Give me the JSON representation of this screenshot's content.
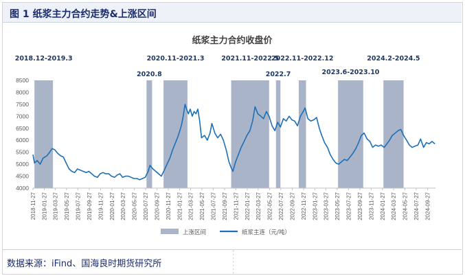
{
  "figure": {
    "title": "图 1  纸浆主力合约走势&上涨区间"
  },
  "source": {
    "text": "数据来源：iFind、国海良时期货研究所"
  },
  "chart_data": {
    "type": "line",
    "title": "纸浆主力合约收盘价",
    "xlabel": "",
    "ylabel": "",
    "ylim": [
      4000,
      8500
    ],
    "yticks": [
      4000,
      4500,
      5000,
      5500,
      6000,
      6500,
      7000,
      7500,
      8000,
      8500
    ],
    "x_tick_labels": [
      "2018-11-27",
      "2019-01-27",
      "2019-03-27",
      "2019-05-27",
      "2019-07-27",
      "2019-09-27",
      "2019-11-27",
      "2020-01-27",
      "2020-03-27",
      "2020-05-27",
      "2020-07-27",
      "2020-09-27",
      "2020-11-27",
      "2021-01-27",
      "2021-03-27",
      "2021-05-27",
      "2021-07-27",
      "2021-09-27",
      "2021-11-27",
      "2022-01-27",
      "2022-03-27",
      "2022-05-27",
      "2022-07-27",
      "2022-09-27",
      "2022-11-27",
      "2023-01-27",
      "2023-03-27",
      "2023-05-27",
      "2023-07-27",
      "2023-09-27",
      "2023-11-27",
      "2024-01-27",
      "2024-03-27",
      "2024-05-27",
      "2024-07-27",
      "2024-09-27"
    ],
    "grid": false,
    "legend": "bottom",
    "colors": {
      "line": "#1a6fb8",
      "shade": "#aab4c8"
    },
    "legend_entries": [
      "上涨区间",
      "纸浆主连（元/吨）"
    ],
    "shaded_periods": [
      {
        "label": "2018.12-2019.3",
        "start": "2018-12-05",
        "end": "2019-03-15"
      },
      {
        "label": "2020.8",
        "start": "2020-08-01",
        "end": "2020-08-31"
      },
      {
        "label": "2020.11-2021.3",
        "start": "2020-11-01",
        "end": "2021-03-10"
      },
      {
        "label": "2021.11-2022.5",
        "start": "2021-11-01",
        "end": "2022-05-25"
      },
      {
        "label": "2022.7",
        "start": "2022-07-01",
        "end": "2022-07-25"
      },
      {
        "label": "2022.11-2022.12",
        "start": "2022-11-01",
        "end": "2022-12-10"
      },
      {
        "label": "2023.6-2023.10",
        "start": "2023-06-01",
        "end": "2023-10-15"
      },
      {
        "label": "2024.2-2024.5",
        "start": "2024-02-01",
        "end": "2024-05-20"
      }
    ],
    "series": [
      {
        "name": "纸浆主连（元/吨）",
        "points": [
          [
            "2018-11-27",
            5400
          ],
          [
            "2018-12-05",
            5050
          ],
          [
            "2018-12-20",
            5150
          ],
          [
            "2019-01-05",
            5000
          ],
          [
            "2019-01-20",
            5250
          ],
          [
            "2019-02-10",
            5350
          ],
          [
            "2019-02-25",
            5500
          ],
          [
            "2019-03-10",
            5650
          ],
          [
            "2019-03-25",
            5600
          ],
          [
            "2019-04-10",
            5450
          ],
          [
            "2019-04-25",
            5350
          ],
          [
            "2019-05-10",
            5300
          ],
          [
            "2019-05-25",
            5050
          ],
          [
            "2019-06-10",
            4800
          ],
          [
            "2019-06-25",
            4700
          ],
          [
            "2019-07-10",
            4650
          ],
          [
            "2019-07-25",
            4800
          ],
          [
            "2019-08-10",
            4750
          ],
          [
            "2019-08-25",
            4700
          ],
          [
            "2019-09-10",
            4650
          ],
          [
            "2019-09-25",
            4700
          ],
          [
            "2019-10-10",
            4600
          ],
          [
            "2019-10-25",
            4500
          ],
          [
            "2019-11-10",
            4450
          ],
          [
            "2019-11-25",
            4600
          ],
          [
            "2019-12-10",
            4650
          ],
          [
            "2019-12-25",
            4600
          ],
          [
            "2020-01-10",
            4600
          ],
          [
            "2020-01-25",
            4500
          ],
          [
            "2020-02-10",
            4450
          ],
          [
            "2020-02-25",
            4550
          ],
          [
            "2020-03-10",
            4600
          ],
          [
            "2020-03-25",
            4450
          ],
          [
            "2020-04-10",
            4500
          ],
          [
            "2020-04-25",
            4500
          ],
          [
            "2020-05-10",
            4450
          ],
          [
            "2020-05-25",
            4400
          ],
          [
            "2020-06-10",
            4400
          ],
          [
            "2020-06-25",
            4350
          ],
          [
            "2020-07-10",
            4400
          ],
          [
            "2020-07-25",
            4450
          ],
          [
            "2020-08-10",
            4700
          ],
          [
            "2020-08-20",
            4950
          ],
          [
            "2020-09-05",
            4800
          ],
          [
            "2020-09-20",
            4700
          ],
          [
            "2020-10-05",
            4600
          ],
          [
            "2020-10-20",
            4500
          ],
          [
            "2020-11-05",
            4750
          ],
          [
            "2020-11-20",
            5000
          ],
          [
            "2020-12-05",
            5250
          ],
          [
            "2020-12-20",
            5600
          ],
          [
            "2021-01-05",
            5900
          ],
          [
            "2021-01-20",
            6200
          ],
          [
            "2021-02-05",
            6600
          ],
          [
            "2021-02-15",
            7000
          ],
          [
            "2021-02-25",
            7500
          ],
          [
            "2021-03-05",
            7300
          ],
          [
            "2021-03-15",
            7100
          ],
          [
            "2021-03-25",
            7300
          ],
          [
            "2021-04-05",
            7000
          ],
          [
            "2021-04-15",
            7200
          ],
          [
            "2021-04-25",
            7100
          ],
          [
            "2021-05-05",
            7300
          ],
          [
            "2021-05-15",
            6800
          ],
          [
            "2021-05-25",
            6100
          ],
          [
            "2021-06-10",
            6200
          ],
          [
            "2021-06-25",
            6000
          ],
          [
            "2021-07-10",
            6300
          ],
          [
            "2021-07-20",
            6700
          ],
          [
            "2021-08-05",
            6300
          ],
          [
            "2021-08-20",
            6100
          ],
          [
            "2021-09-05",
            6250
          ],
          [
            "2021-09-20",
            6000
          ],
          [
            "2021-10-05",
            5600
          ],
          [
            "2021-10-20",
            5100
          ],
          [
            "2021-11-01",
            4850
          ],
          [
            "2021-11-10",
            4700
          ],
          [
            "2021-11-25",
            5100
          ],
          [
            "2021-12-10",
            5400
          ],
          [
            "2021-12-25",
            5700
          ],
          [
            "2022-01-10",
            5950
          ],
          [
            "2022-01-25",
            6200
          ],
          [
            "2022-02-10",
            6400
          ],
          [
            "2022-02-25",
            6800
          ],
          [
            "2022-03-10",
            7400
          ],
          [
            "2022-03-25",
            7100
          ],
          [
            "2022-04-10",
            7000
          ],
          [
            "2022-04-25",
            6900
          ],
          [
            "2022-05-10",
            7200
          ],
          [
            "2022-05-25",
            7000
          ],
          [
            "2022-06-10",
            6600
          ],
          [
            "2022-06-25",
            6400
          ],
          [
            "2022-07-10",
            6750
          ],
          [
            "2022-07-25",
            6550
          ],
          [
            "2022-08-10",
            6900
          ],
          [
            "2022-08-25",
            6800
          ],
          [
            "2022-09-10",
            7000
          ],
          [
            "2022-09-25",
            6850
          ],
          [
            "2022-10-10",
            6800
          ],
          [
            "2022-10-25",
            6600
          ],
          [
            "2022-11-10",
            7000
          ],
          [
            "2022-11-25",
            7200
          ],
          [
            "2022-12-05",
            7350
          ],
          [
            "2022-12-20",
            6900
          ],
          [
            "2023-01-05",
            6800
          ],
          [
            "2023-01-20",
            6850
          ],
          [
            "2023-02-05",
            6950
          ],
          [
            "2023-02-20",
            6500
          ],
          [
            "2023-03-05",
            6200
          ],
          [
            "2023-03-20",
            5900
          ],
          [
            "2023-04-05",
            5700
          ],
          [
            "2023-04-20",
            5400
          ],
          [
            "2023-05-05",
            5200
          ],
          [
            "2023-05-20",
            5050
          ],
          [
            "2023-06-05",
            5000
          ],
          [
            "2023-06-20",
            5100
          ],
          [
            "2023-07-05",
            5200
          ],
          [
            "2023-07-20",
            5150
          ],
          [
            "2023-08-05",
            5300
          ],
          [
            "2023-08-20",
            5450
          ],
          [
            "2023-09-05",
            5650
          ],
          [
            "2023-09-20",
            5900
          ],
          [
            "2023-10-05",
            6200
          ],
          [
            "2023-10-20",
            6300
          ],
          [
            "2023-11-05",
            6050
          ],
          [
            "2023-11-20",
            5950
          ],
          [
            "2023-12-05",
            5700
          ],
          [
            "2023-12-20",
            5800
          ],
          [
            "2024-01-05",
            5750
          ],
          [
            "2024-01-20",
            5800
          ],
          [
            "2024-02-05",
            5700
          ],
          [
            "2024-02-20",
            5850
          ],
          [
            "2024-03-05",
            6000
          ],
          [
            "2024-03-20",
            6200
          ],
          [
            "2024-04-05",
            6300
          ],
          [
            "2024-04-20",
            6400
          ],
          [
            "2024-05-05",
            6450
          ],
          [
            "2024-05-20",
            6200
          ],
          [
            "2024-06-05",
            6000
          ],
          [
            "2024-06-20",
            5800
          ],
          [
            "2024-07-05",
            5700
          ],
          [
            "2024-07-20",
            5750
          ],
          [
            "2024-08-05",
            5800
          ],
          [
            "2024-08-20",
            6050
          ],
          [
            "2024-09-05",
            5700
          ],
          [
            "2024-09-20",
            5900
          ],
          [
            "2024-10-05",
            5850
          ],
          [
            "2024-10-20",
            5950
          ],
          [
            "2024-11-05",
            5850
          ]
        ]
      }
    ]
  }
}
